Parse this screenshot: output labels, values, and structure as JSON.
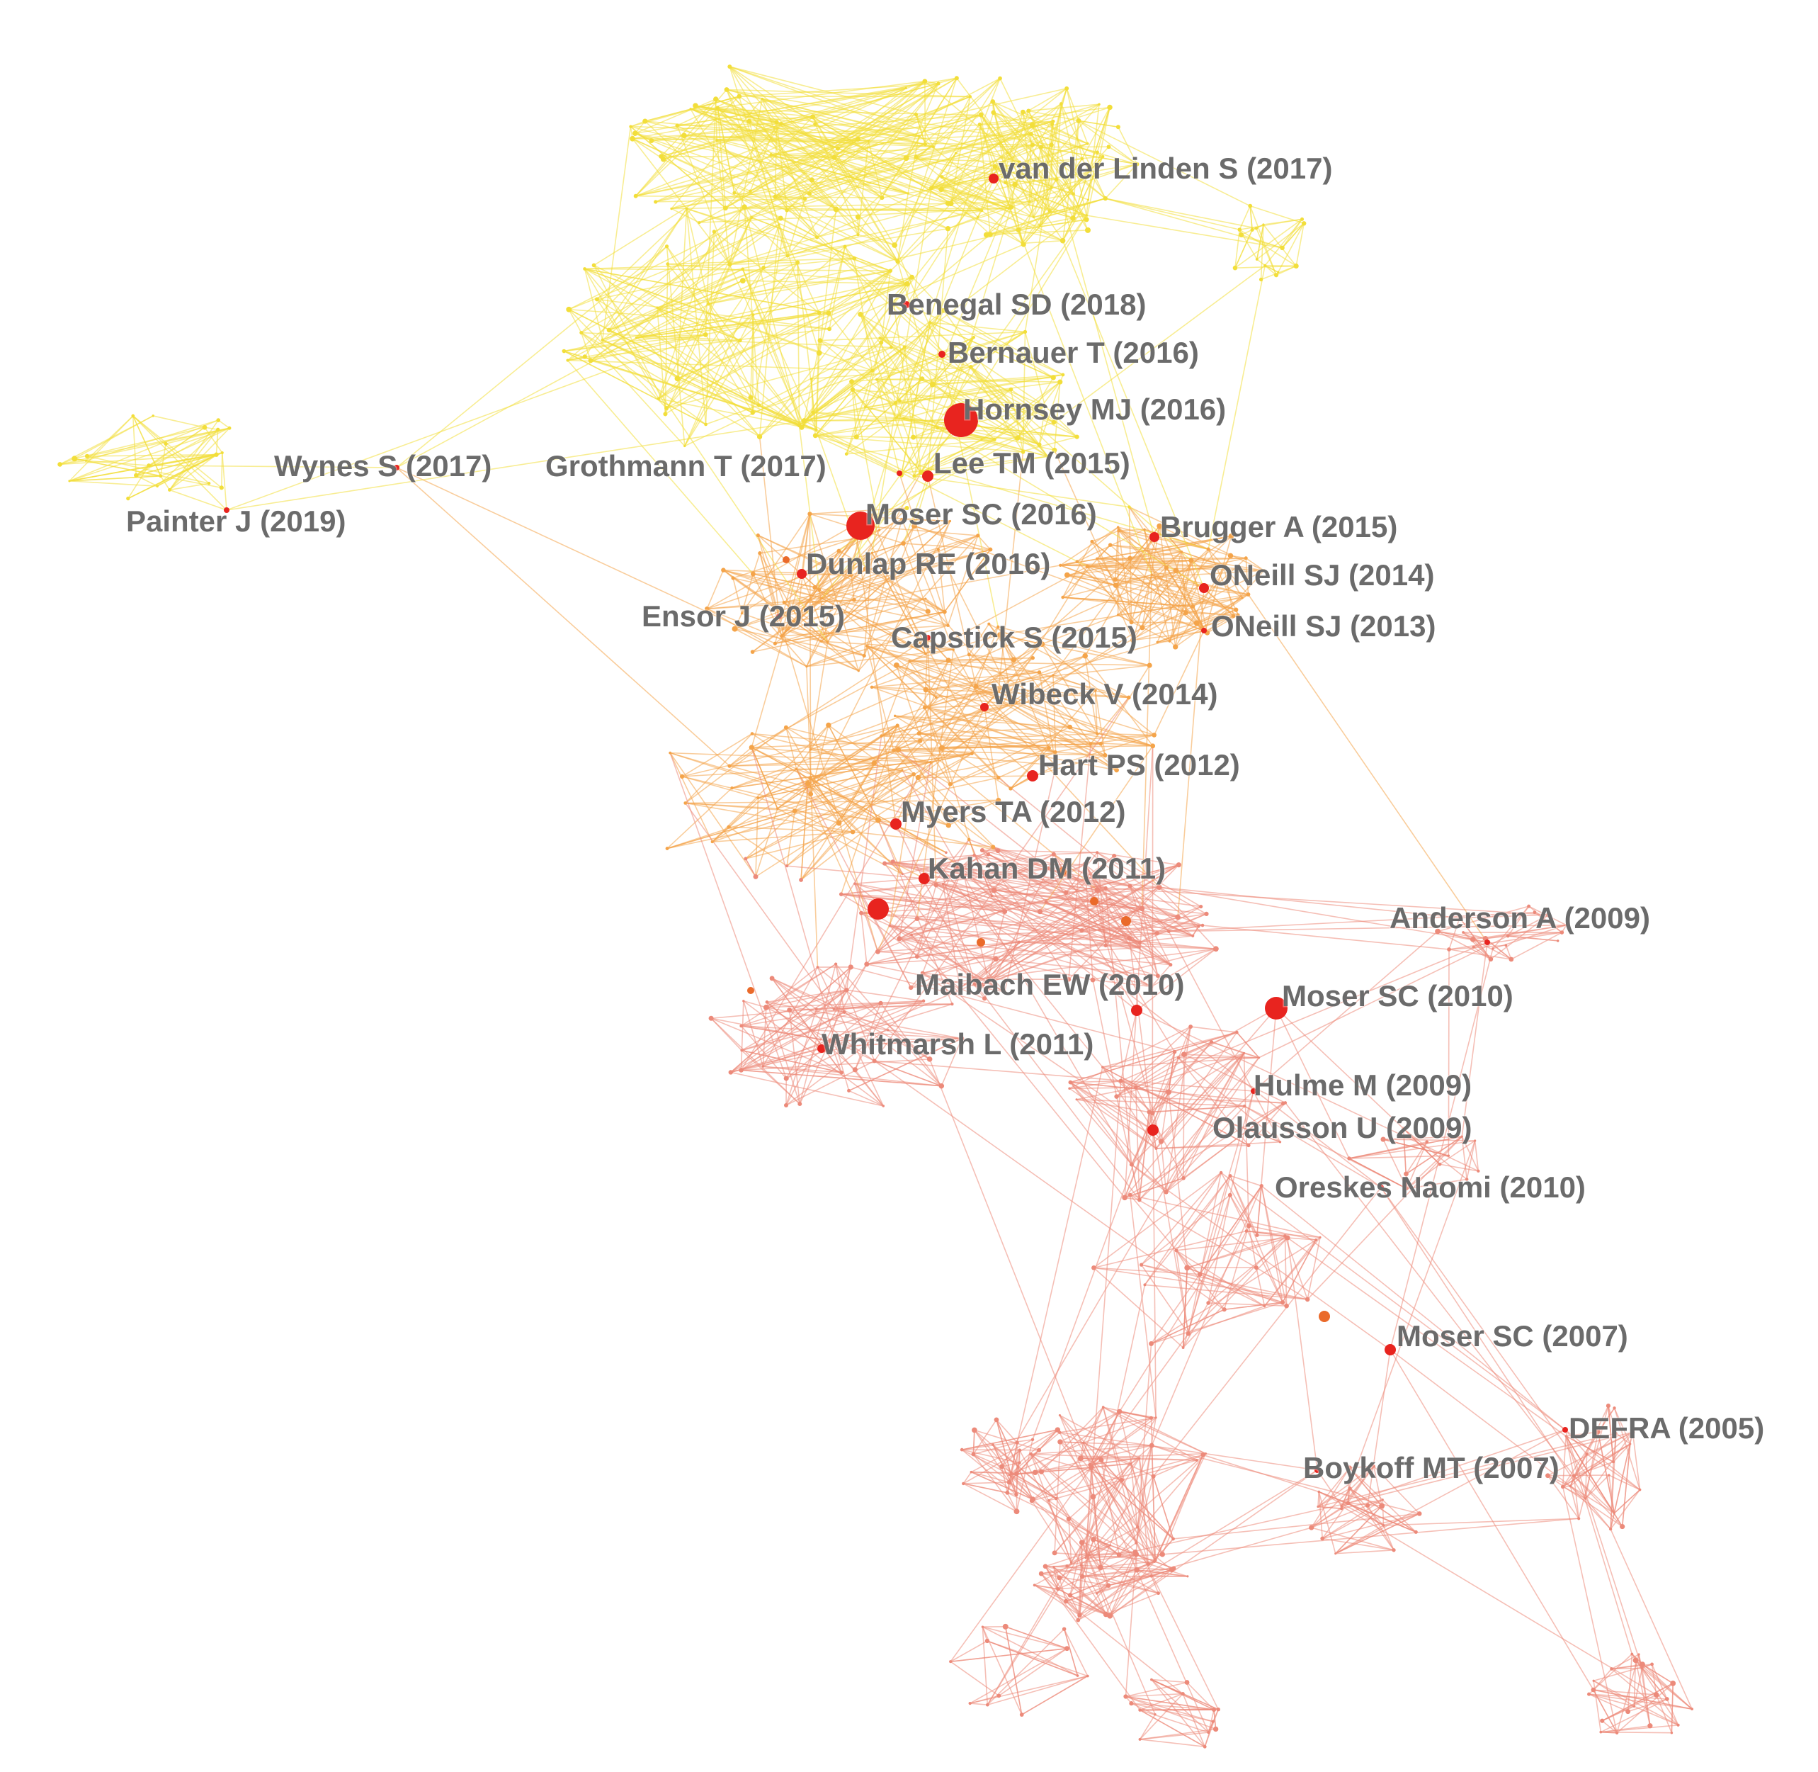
{
  "colors": {
    "background": "#ffffff",
    "recent": "#f2de3a",
    "middle": "#f4a44a",
    "early": "#ec8a7a",
    "highlight": "#e8241f",
    "label": "#6b6b6b"
  },
  "nodes": [
    {
      "id": "vanderlinden2017",
      "label": "van der Linden S (2017)",
      "year": 2017
    },
    {
      "id": "benegal2018",
      "label": "Benegal SD (2018)",
      "year": 2018
    },
    {
      "id": "bernauer2016",
      "label": "Bernauer T (2016)",
      "year": 2016
    },
    {
      "id": "hornsey2016",
      "label": "Hornsey MJ (2016)",
      "year": 2016
    },
    {
      "id": "wynes2017",
      "label": "Wynes S (2017)",
      "year": 2017
    },
    {
      "id": "grothmann2017",
      "label": "Grothmann T (2017)",
      "year": 2017
    },
    {
      "id": "lee2015",
      "label": "Lee TM (2015)",
      "year": 2015
    },
    {
      "id": "painter2019",
      "label": "Painter J (2019)",
      "year": 2019
    },
    {
      "id": "moser2016",
      "label": "Moser SC (2016)",
      "year": 2016
    },
    {
      "id": "brugger2015",
      "label": "Brugger A (2015)",
      "year": 2015
    },
    {
      "id": "dunlap2016",
      "label": "Dunlap RE (2016)",
      "year": 2016
    },
    {
      "id": "oneill2014",
      "label": "ONeill SJ (2014)",
      "year": 2014
    },
    {
      "id": "ensor2015",
      "label": "Ensor J (2015)",
      "year": 2015
    },
    {
      "id": "capstick2015",
      "label": "Capstick S (2015)",
      "year": 2015
    },
    {
      "id": "oneill2013",
      "label": "ONeill SJ (2013)",
      "year": 2013
    },
    {
      "id": "wibeck2014",
      "label": "Wibeck V (2014)",
      "year": 2014
    },
    {
      "id": "hart2012",
      "label": "Hart PS (2012)",
      "year": 2012
    },
    {
      "id": "myers2012",
      "label": "Myers TA (2012)",
      "year": 2012
    },
    {
      "id": "kahan2011",
      "label": "Kahan DM (2011)",
      "year": 2011
    },
    {
      "id": "anderson2009",
      "label": "Anderson A (2009)",
      "year": 2009
    },
    {
      "id": "maibach2010",
      "label": "Maibach EW (2010)",
      "year": 2010
    },
    {
      "id": "moser2010",
      "label": "Moser SC (2010)",
      "year": 2010
    },
    {
      "id": "whitmarsh2011",
      "label": "Whitmarsh L (2011)",
      "year": 2011
    },
    {
      "id": "hulme2009",
      "label": "Hulme M (2009)",
      "year": 2009
    },
    {
      "id": "olausson2009",
      "label": "Olausson U (2009)",
      "year": 2009
    },
    {
      "id": "oreskes2010",
      "label": "Oreskes Naomi (2010)",
      "year": 2010
    },
    {
      "id": "moser2007",
      "label": "Moser SC (2007)",
      "year": 2007
    },
    {
      "id": "defra2005",
      "label": "DEFRA (2005)",
      "year": 2005
    },
    {
      "id": "boykoff2007",
      "label": "Boykoff MT (2007)",
      "year": 2007
    }
  ]
}
